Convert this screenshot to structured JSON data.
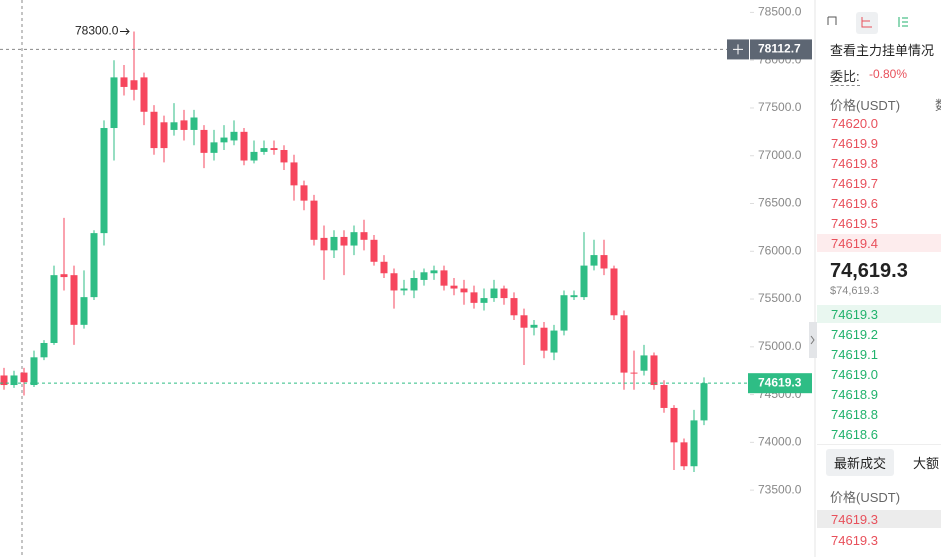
{
  "chart_data": {
    "type": "candlestick",
    "up_color": "#2ebd85",
    "down_color": "#f6465d",
    "open": [
      74700,
      74600,
      74730,
      74600,
      74890,
      75040,
      75760,
      75750,
      75230,
      75520,
      76190,
      77290,
      77820,
      77790,
      77820,
      77460,
      77350,
      77270,
      77370,
      77270,
      77270,
      77030,
      77140,
      77160,
      77250,
      76950,
      77040,
      77080,
      77060,
      76930,
      76690,
      76530,
      76140,
      76010,
      76150,
      76060,
      76200,
      76120,
      75890,
      75770,
      75590,
      75590,
      75700,
      75770,
      75800,
      75640,
      75610,
      75570,
      75460,
      75510,
      75610,
      75510,
      75330,
      75200,
      75200,
      74940,
      75170,
      75520,
      75520,
      75850,
      75960,
      75820,
      75330,
      74730,
      74750,
      74910,
      74600,
      74360,
      74000,
      73750,
      74230
    ],
    "high": [
      74780,
      74750,
      74780,
      74960,
      75070,
      75850,
      76350,
      75850,
      75800,
      76220,
      77370,
      78000,
      77950,
      78300,
      77870,
      77530,
      77420,
      77550,
      77480,
      77480,
      77320,
      77270,
      77320,
      77370,
      77290,
      77160,
      77160,
      77160,
      77110,
      77010,
      76740,
      76590,
      76270,
      76220,
      76220,
      76270,
      76330,
      76170,
      75960,
      75820,
      75700,
      75800,
      75820,
      75850,
      75850,
      75720,
      75700,
      75640,
      75610,
      75700,
      75640,
      75570,
      75400,
      75280,
      75260,
      75230,
      75590,
      75590,
      76200,
      76120,
      76120,
      75850,
      75380,
      74960,
      75020,
      74940,
      74650,
      74390,
      74040,
      74340,
      74680
    ],
    "low": [
      74550,
      74570,
      74490,
      74580,
      74860,
      75020,
      75590,
      75020,
      75190,
      75490,
      76060,
      76950,
      77630,
      77580,
      77320,
      77010,
      76930,
      77210,
      77160,
      77110,
      76870,
      76950,
      77060,
      77110,
      76900,
      76920,
      77010,
      77010,
      76850,
      76530,
      76430,
      76060,
      75700,
      75930,
      75750,
      75960,
      76010,
      75850,
      75720,
      75400,
      75540,
      75510,
      75640,
      75700,
      75590,
      75540,
      75440,
      75400,
      75380,
      75470,
      75440,
      75280,
      74810,
      75120,
      74880,
      74860,
      75120,
      75490,
      75490,
      75800,
      75750,
      75280,
      74550,
      74550,
      74700,
      74550,
      74310,
      73710,
      73710,
      73690,
      74180
    ],
    "close": [
      74600,
      74700,
      74630,
      74890,
      75040,
      75750,
      75730,
      75230,
      75520,
      76190,
      77290,
      77820,
      77720,
      77690,
      77460,
      77080,
      77080,
      77350,
      77270,
      77400,
      77030,
      77140,
      77190,
      77250,
      76950,
      77040,
      77080,
      77060,
      76930,
      76690,
      76530,
      76120,
      76010,
      76150,
      76060,
      76200,
      76120,
      75890,
      75770,
      75590,
      75610,
      75720,
      75780,
      75800,
      75640,
      75610,
      75570,
      75460,
      75510,
      75610,
      75510,
      75330,
      75200,
      75230,
      74960,
      75170,
      75540,
      75540,
      75850,
      75960,
      75820,
      75330,
      74730,
      74720,
      74910,
      74600,
      74360,
      74000,
      73750,
      74230,
      74619.3
    ],
    "ylim": [
      72800,
      78630
    ],
    "yticks": [
      {
        "value": 73500,
        "label": "73500.0"
      },
      {
        "value": 74000,
        "label": "74000.0"
      },
      {
        "value": 74500,
        "label": "74500.0"
      },
      {
        "value": 75000,
        "label": "75000.0"
      },
      {
        "value": 75500,
        "label": "75500.0"
      },
      {
        "value": 76000,
        "label": "76000.0"
      },
      {
        "value": 76500,
        "label": "76500.0"
      },
      {
        "value": 77000,
        "label": "77000.0"
      },
      {
        "value": 77500,
        "label": "77500.0"
      },
      {
        "value": 78000,
        "label": "78000.0"
      },
      {
        "value": 78500,
        "label": "78500.0"
      }
    ],
    "high_mark": {
      "value": 78300,
      "label": "78300.0"
    },
    "crosshair": {
      "value": 78112.7,
      "label": "78112.7"
    },
    "last_price": {
      "value": 74619.3,
      "label": "74619.3"
    }
  },
  "order_book": {
    "title": "查看主力挂单情况",
    "ratio_label": "委比:",
    "ratio": "-0.80%",
    "header": [
      "价格(USDT)",
      "数"
    ],
    "asks": [
      "74620.0",
      "74619.9",
      "74619.8",
      "74619.7",
      "74619.6",
      "74619.5",
      "74619.4"
    ],
    "mid_price": "74,619.3",
    "mid_usd": "$74,619.3",
    "bids": [
      "74619.3",
      "74619.2",
      "74619.1",
      "74619.0",
      "74618.9",
      "74618.8",
      "74618.6"
    ]
  },
  "trades": {
    "tabs": [
      "最新成交",
      "大额"
    ],
    "header": "价格(USDT)",
    "rows": [
      "74619.3",
      "74619.3"
    ]
  }
}
